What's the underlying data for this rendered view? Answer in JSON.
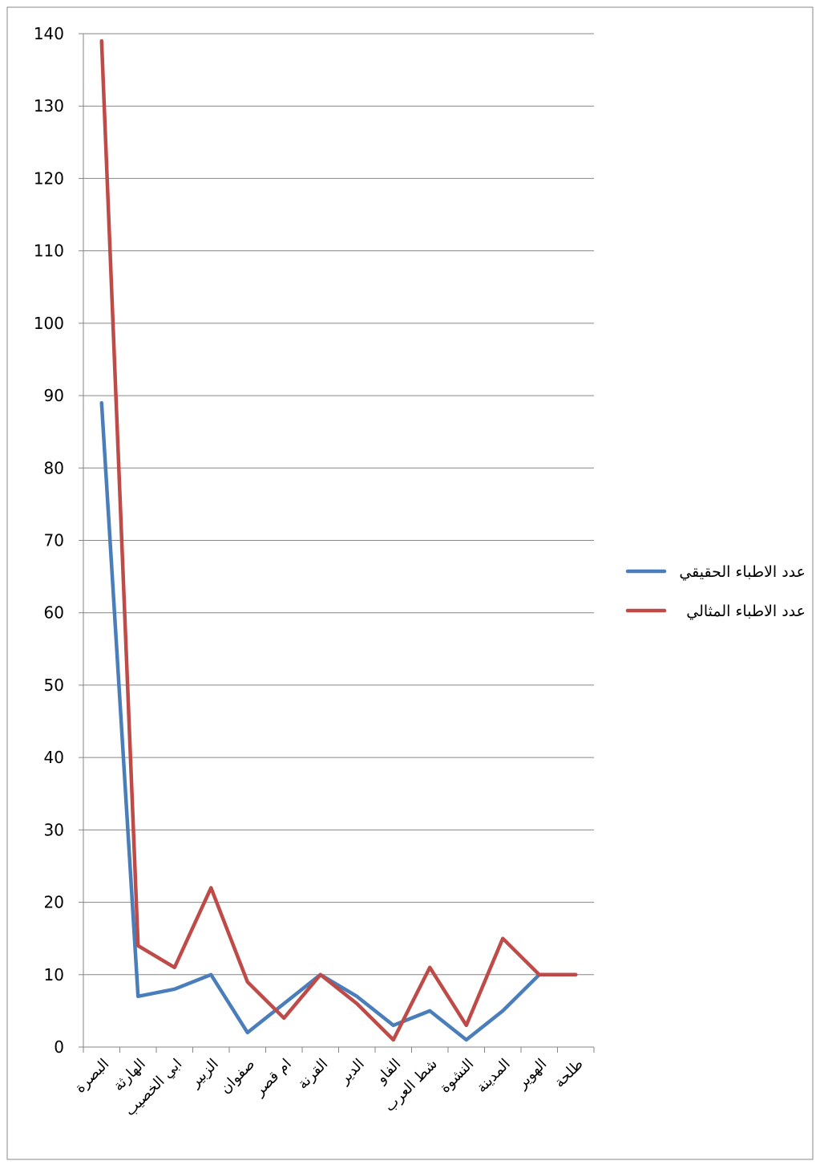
{
  "chart_data": {
    "type": "line",
    "categories": [
      "البصرة",
      "الهارثة",
      "ابي الخصيب",
      "الزبير",
      "صفوان",
      "ام قصر",
      "القرنة",
      "الدير",
      "الفاو",
      "شط العرب",
      "النشوة",
      "المدينة",
      "الهوير",
      "طلحة"
    ],
    "ylim": [
      0,
      140
    ],
    "ytick_step": 10,
    "yticks": [
      "0",
      "10",
      "20",
      "30",
      "40",
      "50",
      "60",
      "70",
      "80",
      "90",
      "100",
      "110",
      "120",
      "130",
      "140"
    ],
    "grid": "horizontal",
    "legend_position": "right",
    "series": [
      {
        "name": "عدد الاطباء الحقيقي",
        "color": "#4a7ebb",
        "values": [
          89,
          7,
          8,
          10,
          2,
          6,
          10,
          7,
          3,
          5,
          1,
          5,
          10,
          10
        ]
      },
      {
        "name": "عدد الاطباء المثالي",
        "color": "#be4b48",
        "values": [
          139,
          14,
          11,
          22,
          9,
          4,
          10,
          6,
          1,
          11,
          3,
          15,
          10,
          10
        ]
      }
    ]
  }
}
